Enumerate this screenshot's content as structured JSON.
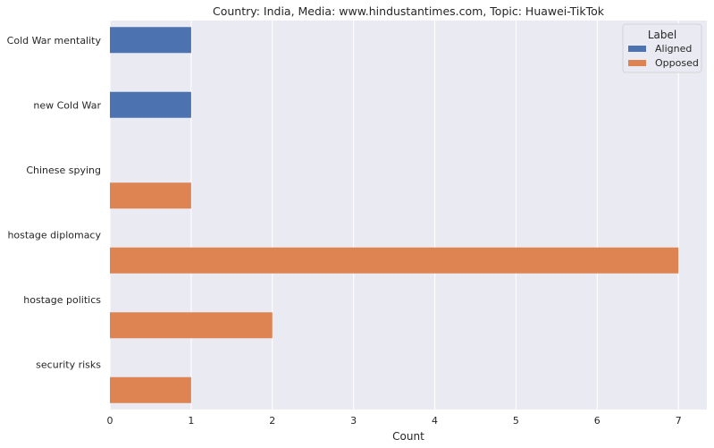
{
  "chart_data": {
    "type": "bar",
    "orientation": "horizontal",
    "title": "Country: India, Media: www.hindustantimes.com, Topic: Huawei-TikTok",
    "xlabel": "Count",
    "ylabel": "",
    "xlim": [
      0,
      7.35
    ],
    "xticks": [
      "0",
      "1",
      "2",
      "3",
      "4",
      "5",
      "6",
      "7"
    ],
    "grid": true,
    "categories": [
      "Cold War mentality",
      "new Cold War",
      "Chinese spying",
      "hostage diplomacy",
      "hostage politics",
      "security risks"
    ],
    "series": [
      {
        "name": "Aligned",
        "color": "#4c72b0",
        "values": [
          1,
          1,
          0,
          0,
          0,
          0
        ]
      },
      {
        "name": "Opposed",
        "color": "#dd8452",
        "values": [
          0,
          0,
          1,
          7,
          2,
          1
        ]
      }
    ],
    "legend": {
      "title": "Label",
      "position": "top-right"
    },
    "colors": {
      "background": "#eaeaf2",
      "grid": "#ffffff"
    }
  }
}
